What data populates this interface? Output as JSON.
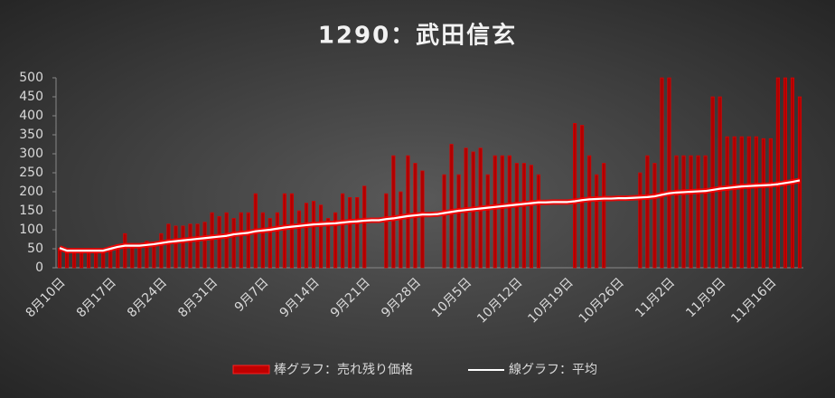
{
  "chart_data": {
    "type": "bar-line",
    "title": "1290：武田信玄",
    "categories": [
      "8月10日",
      null,
      null,
      null,
      null,
      null,
      null,
      "8月17日",
      null,
      null,
      null,
      null,
      null,
      null,
      "8月24日",
      null,
      null,
      null,
      null,
      null,
      null,
      "8月31日",
      null,
      null,
      null,
      null,
      null,
      null,
      "9月7日",
      null,
      null,
      null,
      null,
      null,
      null,
      "9月14日",
      null,
      null,
      null,
      null,
      null,
      null,
      "9月21日",
      null,
      null,
      null,
      null,
      null,
      null,
      "9月28日",
      null,
      null,
      null,
      null,
      null,
      null,
      "10月5日",
      null,
      null,
      null,
      null,
      null,
      null,
      "10月12日",
      null,
      null,
      null,
      null,
      null,
      null,
      "10月19日",
      null,
      null,
      null,
      null,
      null,
      null,
      "10月26日",
      null,
      null,
      null,
      null,
      null,
      null,
      "11月2日",
      null,
      null,
      null,
      null,
      null,
      null,
      "11月9日",
      null,
      null,
      null,
      null,
      null,
      null,
      "11月16日",
      null,
      null,
      null,
      null
    ],
    "series": [
      {
        "name": "棒グラフ：売れ残り価格",
        "type": "bar",
        "color": "#b00000",
        "values": [
          52,
          45,
          45,
          45,
          45,
          45,
          45,
          55,
          60,
          90,
          60,
          60,
          70,
          60,
          90,
          115,
          110,
          110,
          115,
          115,
          120,
          145,
          135,
          145,
          130,
          145,
          145,
          195,
          145,
          130,
          145,
          195,
          195,
          150,
          170,
          175,
          165,
          130,
          145,
          195,
          185,
          185,
          215,
          null,
          null,
          195,
          295,
          200,
          295,
          275,
          255,
          null,
          null,
          245,
          325,
          245,
          315,
          305,
          315,
          245,
          295,
          295,
          295,
          275,
          275,
          270,
          245,
          null,
          null,
          null,
          null,
          380,
          375,
          295,
          245,
          275,
          null,
          null,
          null,
          null,
          250,
          295,
          275,
          500,
          500,
          295,
          295,
          295,
          295,
          295,
          450,
          450,
          345,
          345,
          345,
          345,
          345,
          340,
          340,
          500,
          500,
          500,
          450
        ]
      },
      {
        "name": "線グラフ：平均",
        "type": "line",
        "color": "#ffffff",
        "values": [
          52,
          45,
          45,
          45,
          45,
          45,
          45,
          50,
          55,
          58,
          58,
          58,
          60,
          62,
          65,
          68,
          70,
          72,
          74,
          76,
          78,
          80,
          82,
          84,
          88,
          90,
          92,
          96,
          98,
          100,
          103,
          106,
          108,
          110,
          112,
          114,
          115,
          116,
          117,
          119,
          121,
          122,
          124,
          125,
          125,
          128,
          130,
          133,
          136,
          138,
          140,
          140,
          141,
          144,
          147,
          150,
          152,
          154,
          156,
          158,
          160,
          162,
          164,
          166,
          168,
          170,
          172,
          172,
          173,
          173,
          173,
          175,
          178,
          180,
          181,
          182,
          182,
          183,
          183,
          184,
          185,
          186,
          188,
          192,
          196,
          198,
          199,
          200,
          201,
          202,
          205,
          208,
          210,
          212,
          214,
          215,
          216,
          217,
          218,
          220,
          223,
          226,
          230
        ]
      }
    ],
    "ylim": [
      0,
      500
    ],
    "yticks": [
      0,
      50,
      100,
      150,
      200,
      250,
      300,
      350,
      400,
      450,
      500
    ],
    "grid": false,
    "legend": "bottom"
  }
}
